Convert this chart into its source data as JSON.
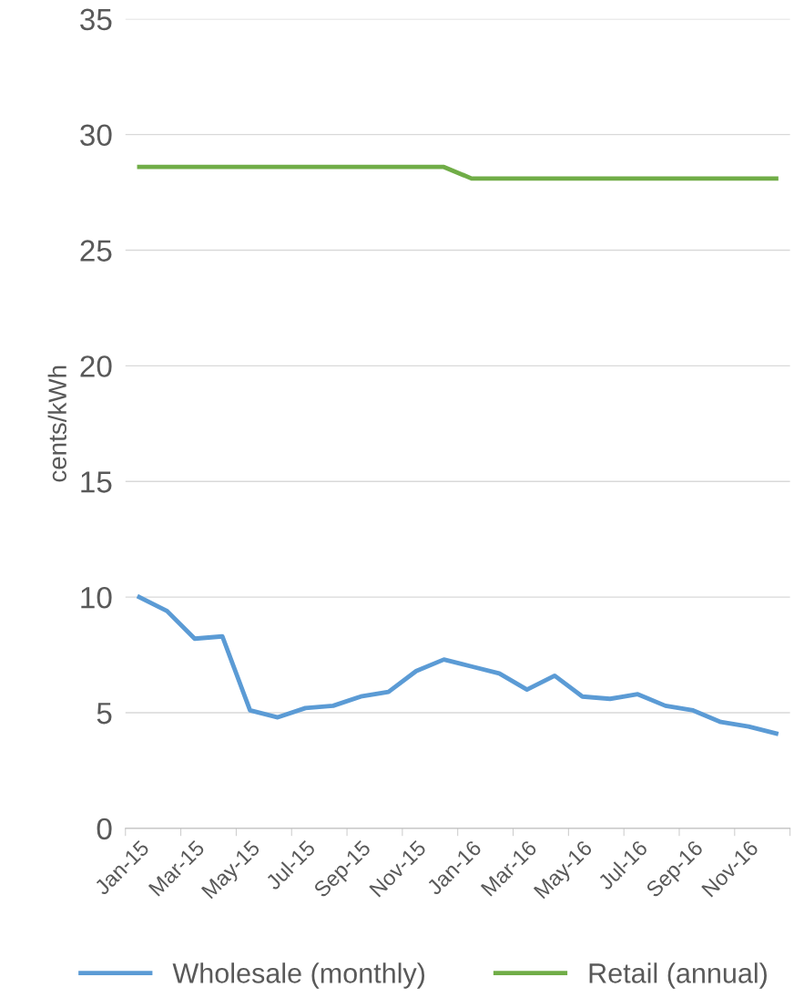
{
  "chart_data": {
    "type": "line",
    "ylabel": "cents/kWh",
    "categories": [
      "Jan-15",
      null,
      "Mar-15",
      null,
      "May-15",
      null,
      "Jul-15",
      null,
      "Sep-15",
      null,
      "Nov-15",
      null,
      "Jan-16",
      null,
      "Mar-16",
      null,
      "May-16",
      null,
      "Jul-16",
      null,
      "Sep-16",
      null,
      "Nov-16",
      null
    ],
    "series": [
      {
        "name": "Wholesale (monthly)",
        "color": "#5b9bd5",
        "values": [
          10.0,
          9.4,
          8.2,
          8.3,
          5.1,
          4.8,
          5.2,
          5.3,
          5.7,
          5.9,
          6.8,
          7.3,
          7.0,
          6.7,
          6.0,
          6.6,
          5.7,
          5.6,
          5.8,
          5.3,
          5.1,
          4.6,
          4.4,
          4.1
        ]
      },
      {
        "name": "Retail (annual)",
        "color": "#70ad47",
        "values": [
          28.6,
          28.6,
          28.6,
          28.6,
          28.6,
          28.6,
          28.6,
          28.6,
          28.6,
          28.6,
          28.6,
          28.6,
          28.1,
          28.1,
          28.1,
          28.1,
          28.1,
          28.1,
          28.1,
          28.1,
          28.1,
          28.1,
          28.1,
          28.1
        ]
      }
    ],
    "ylim": [
      0,
      35
    ],
    "yticks": [
      0,
      5,
      10,
      15,
      20,
      25,
      30,
      35
    ],
    "grid": "y",
    "legend": "bottom",
    "marker": "none",
    "line_style": "solid"
  }
}
